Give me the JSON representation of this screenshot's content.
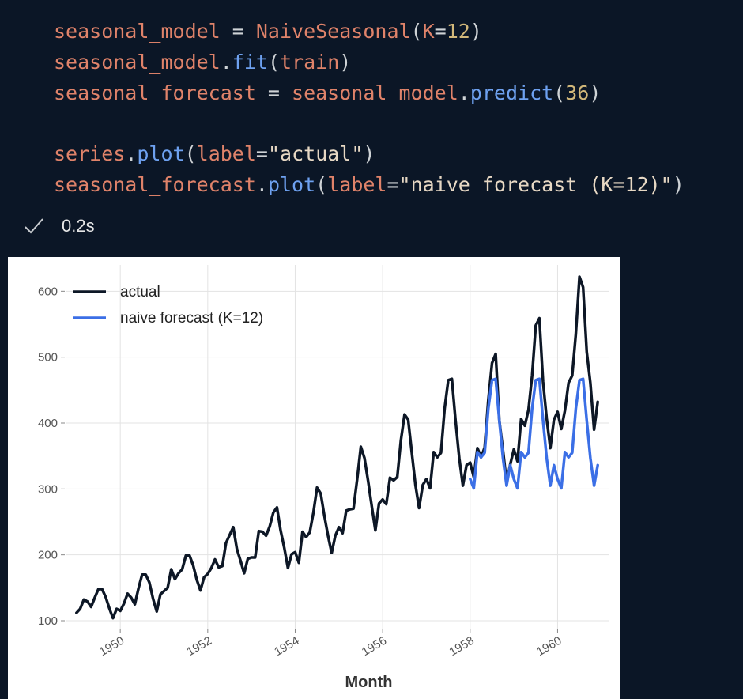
{
  "code": {
    "lines": [
      [
        {
          "t": "seasonal_model",
          "c": "var"
        },
        {
          "t": " = ",
          "c": "op"
        },
        {
          "t": "NaiveSeasonal",
          "c": "cls"
        },
        {
          "t": "(",
          "c": "op"
        },
        {
          "t": "K",
          "c": "kw"
        },
        {
          "t": "=",
          "c": "op"
        },
        {
          "t": "12",
          "c": "num"
        },
        {
          "t": ")",
          "c": "op"
        }
      ],
      [
        {
          "t": "seasonal_model",
          "c": "var"
        },
        {
          "t": ".",
          "c": "op"
        },
        {
          "t": "fit",
          "c": "fn"
        },
        {
          "t": "(",
          "c": "op"
        },
        {
          "t": "train",
          "c": "var"
        },
        {
          "t": ")",
          "c": "op"
        }
      ],
      [
        {
          "t": "seasonal_forecast",
          "c": "var"
        },
        {
          "t": " = ",
          "c": "op"
        },
        {
          "t": "seasonal_model",
          "c": "var"
        },
        {
          "t": ".",
          "c": "op"
        },
        {
          "t": "predict",
          "c": "fn"
        },
        {
          "t": "(",
          "c": "op"
        },
        {
          "t": "36",
          "c": "num"
        },
        {
          "t": ")",
          "c": "op"
        }
      ],
      [],
      [
        {
          "t": "series",
          "c": "var"
        },
        {
          "t": ".",
          "c": "op"
        },
        {
          "t": "plot",
          "c": "fn"
        },
        {
          "t": "(",
          "c": "op"
        },
        {
          "t": "label",
          "c": "kw"
        },
        {
          "t": "=",
          "c": "op"
        },
        {
          "t": "\"actual\"",
          "c": "str"
        },
        {
          "t": ")",
          "c": "op"
        }
      ],
      [
        {
          "t": "seasonal_forecast",
          "c": "var"
        },
        {
          "t": ".",
          "c": "op"
        },
        {
          "t": "plot",
          "c": "fn"
        },
        {
          "t": "(",
          "c": "op"
        },
        {
          "t": "label",
          "c": "kw"
        },
        {
          "t": "=",
          "c": "op"
        },
        {
          "t": "\"naive forecast (K=12)\"",
          "c": "str"
        },
        {
          "t": ")",
          "c": "op"
        }
      ]
    ]
  },
  "status": {
    "icon": "checkmark-icon",
    "time": "0.2s"
  },
  "colors": {
    "background": "#0b1626",
    "actual": "#0d1726",
    "forecast": "#3b6fe6"
  },
  "chart_data": {
    "type": "line",
    "xlabel": "Month",
    "ylabel": "",
    "ylim": [
      88,
      640
    ],
    "yticks": [
      100,
      200,
      300,
      400,
      500,
      600
    ],
    "xlim": [
      "1948-10",
      "1961-03"
    ],
    "xticks": [
      "1950",
      "1952",
      "1954",
      "1956",
      "1958",
      "1960"
    ],
    "grid": true,
    "legend_position": "top-left",
    "x_start": "1949-01",
    "series": [
      {
        "name": "actual",
        "values": [
          112,
          118,
          132,
          129,
          121,
          135,
          148,
          148,
          136,
          119,
          104,
          118,
          115,
          126,
          141,
          135,
          125,
          149,
          170,
          170,
          158,
          133,
          114,
          140,
          145,
          150,
          178,
          163,
          172,
          178,
          199,
          199,
          184,
          162,
          146,
          166,
          171,
          180,
          193,
          181,
          183,
          218,
          230,
          242,
          209,
          191,
          172,
          194,
          196,
          196,
          236,
          235,
          229,
          243,
          264,
          272,
          237,
          211,
          180,
          201,
          204,
          188,
          235,
          227,
          234,
          264,
          302,
          293,
          259,
          229,
          203,
          229,
          242,
          233,
          267,
          269,
          270,
          315,
          364,
          347,
          312,
          274,
          237,
          278,
          284,
          277,
          317,
          313,
          318,
          374,
          413,
          405,
          355,
          306,
          271,
          306,
          315,
          301,
          356,
          348,
          355,
          422,
          465,
          467,
          404,
          347,
          305,
          336,
          340,
          318,
          362,
          348,
          363,
          435,
          491,
          505,
          404,
          359,
          310,
          337,
          360,
          342,
          406,
          396,
          420,
          472,
          548,
          559,
          463,
          407,
          362,
          405,
          417,
          391,
          419,
          461,
          472,
          535,
          622,
          606,
          508,
          461,
          390,
          432
        ]
      },
      {
        "name": "naive forecast (K=12)",
        "start": "1958-01",
        "values": [
          315,
          301,
          356,
          348,
          355,
          422,
          465,
          467,
          404,
          347,
          305,
          336,
          315,
          301,
          356,
          348,
          355,
          422,
          465,
          467,
          404,
          347,
          305,
          336,
          315,
          301,
          356,
          348,
          355,
          422,
          465,
          467,
          404,
          347,
          305,
          336
        ]
      }
    ]
  }
}
